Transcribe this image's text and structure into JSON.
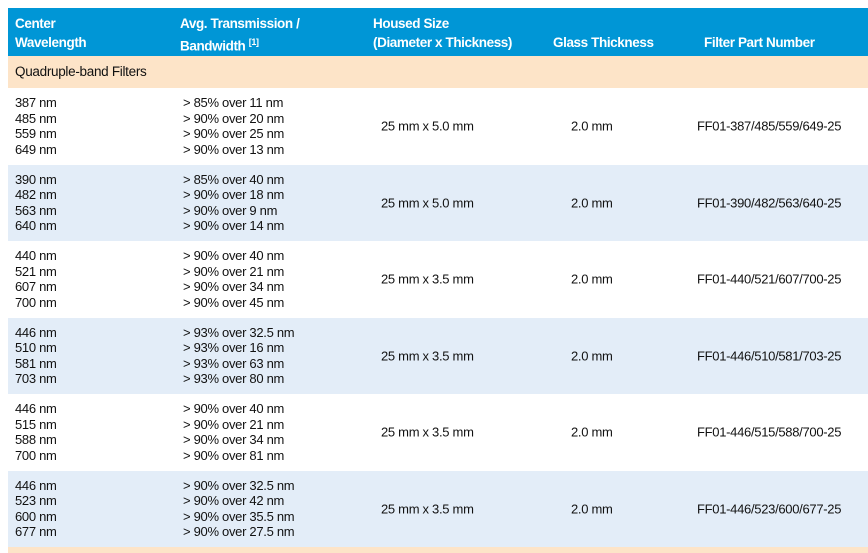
{
  "header": {
    "col1": [
      "Center",
      "Wavelength"
    ],
    "col2": [
      "Avg. Transmission /",
      "Bandwidth"
    ],
    "col2_note": "[1]",
    "col3": [
      "Housed Size",
      "(Diameter x Thickness)"
    ],
    "col4": "Glass Thickness",
    "col5": "Filter Part Number"
  },
  "section": "Quadruple-band Filters",
  "rows": [
    {
      "wl": [
        "387 nm",
        "485 nm",
        "559 nm",
        "649 nm"
      ],
      "tb": [
        "> 85% over 11 nm",
        "> 90% over 20 nm",
        "> 90% over 25 nm",
        "> 90% over 13 nm"
      ],
      "size": "25 mm x 5.0 mm",
      "glass": "2.0 mm",
      "part": "FF01-387/485/559/649-25"
    },
    {
      "wl": [
        "390 nm",
        "482 nm",
        "563 nm",
        "640 nm"
      ],
      "tb": [
        "> 85% over 40 nm",
        "> 90% over 18 nm",
        "> 90% over 9 nm",
        "> 90% over 14 nm"
      ],
      "size": "25 mm x 5.0 mm",
      "glass": "2.0 mm",
      "part": "FF01-390/482/563/640-25"
    },
    {
      "wl": [
        "440 nm",
        "521 nm",
        "607 nm",
        "700 nm"
      ],
      "tb": [
        "> 90% over 40 nm",
        "> 90% over 21 nm",
        "> 90% over 34 nm",
        "> 90% over 45 nm"
      ],
      "size": "25 mm x 3.5 mm",
      "glass": "2.0 mm",
      "part": "FF01-440/521/607/700-25"
    },
    {
      "wl": [
        "446 nm",
        "510 nm",
        "581 nm",
        "703 nm"
      ],
      "tb": [
        "> 93% over 32.5 nm",
        "> 93% over 16 nm",
        "> 93% over 63 nm",
        "> 93% over 80 nm"
      ],
      "size": "25 mm x 3.5 mm",
      "glass": "2.0 mm",
      "part": "FF01-446/510/581/703-25"
    },
    {
      "wl": [
        "446 nm",
        "515 nm",
        "588 nm",
        "700 nm"
      ],
      "tb": [
        "> 90% over 40 nm",
        "> 90% over 21 nm",
        "> 90% over 34 nm",
        "> 90% over 81 nm"
      ],
      "size": "25 mm x 3.5 mm",
      "glass": "2.0 mm",
      "part": "FF01-446/515/588/700-25"
    },
    {
      "wl": [
        "446 nm",
        "523 nm",
        "600 nm",
        "677 nm"
      ],
      "tb": [
        "> 90% over 32.5 nm",
        "> 90% over 42 nm",
        "> 90% over 35.5 nm",
        "> 90% over 27.5 nm"
      ],
      "size": "25 mm x 3.5 mm",
      "glass": "2.0 mm",
      "part": "FF01-446/523/600/677-25"
    }
  ],
  "colors": {
    "header": "#0096d6",
    "section": "#fde4c8",
    "alt_row": "#e3edf8"
  }
}
